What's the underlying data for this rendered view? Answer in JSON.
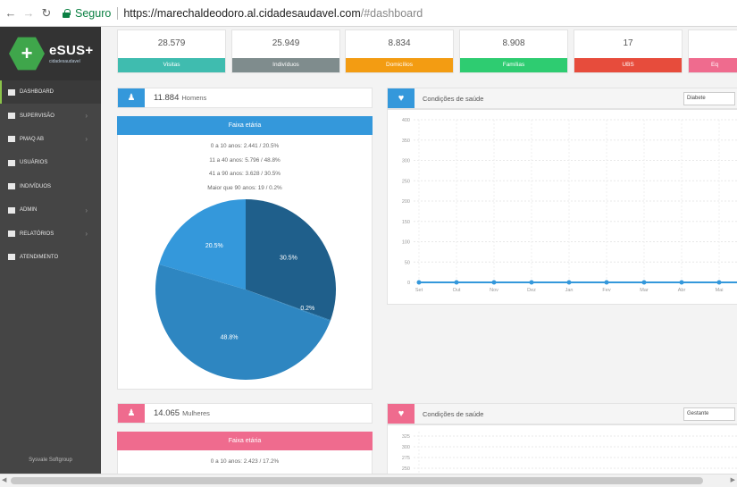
{
  "browser": {
    "secure_label": "Seguro",
    "url_host": "https://marechaldeodoro.al.cidadesaudavel.com",
    "url_path": "/#dashboard"
  },
  "brand": {
    "title": "eSUS+",
    "subtitle": "cidadesaudavel"
  },
  "sidebar": {
    "items": [
      {
        "label": "DASHBOARD",
        "icon": "grid-icon",
        "caret": false
      },
      {
        "label": "SUPERVISÃO",
        "icon": "clipboard-icon",
        "caret": true
      },
      {
        "label": "PMAQ AB",
        "icon": "folder-icon",
        "caret": true
      },
      {
        "label": "USUÁRIOS",
        "icon": "users-icon",
        "caret": false
      },
      {
        "label": "INDIVÍDUOS",
        "icon": "id-card-icon",
        "caret": false
      },
      {
        "label": "ADMIN",
        "icon": "wrench-icon",
        "caret": true
      },
      {
        "label": "RELATÓRIOS",
        "icon": "report-icon",
        "caret": true
      },
      {
        "label": "ATENDIMENTO",
        "icon": "thumbs-up-icon",
        "caret": false
      }
    ],
    "footer": "Sysvale Softgroup"
  },
  "stats": [
    {
      "value": "28.579",
      "label": "Visitas",
      "color": "#3fbcaf"
    },
    {
      "value": "25.949",
      "label": "Indivíduos",
      "color": "#7f8c8d"
    },
    {
      "value": "8.834",
      "label": "Domicílios",
      "color": "#f39c12"
    },
    {
      "value": "8.908",
      "label": "Famílias",
      "color": "#2ecc71"
    },
    {
      "value": "17",
      "label": "UBS",
      "color": "#e74c3c"
    },
    {
      "value": "",
      "label": "Eq",
      "color": "#ef6b8e"
    }
  ],
  "men": {
    "count": "11.884",
    "label": "Homens",
    "faixa": "Faixa etária",
    "color": "#3498db",
    "ranges": [
      "0 a 10 anos: 2.441 / 20.5%",
      "11 a 40 anos: 5.796 / 48.8%",
      "41 a 90 anos: 3.628 / 30.5%",
      "Maior que 90 anos: 19 / 0.2%"
    ]
  },
  "women": {
    "count": "14.065",
    "label": "Mulheres",
    "faixa": "Faixa etária",
    "color": "#ef6b8e",
    "ranges": [
      "0 a 10 anos: 2.423 / 17.2%"
    ]
  },
  "pie": {
    "slices": [
      {
        "label": "30.5%",
        "value": 30.5,
        "color": "#1f5f8b"
      },
      {
        "label": "0.2%",
        "value": 0.2,
        "color": "#2980b9"
      },
      {
        "label": "48.8%",
        "value": 48.8,
        "color": "#2e86c1"
      },
      {
        "label": "20.5%",
        "value": 20.5,
        "color": "#3498db"
      }
    ]
  },
  "conditions_1": {
    "title": "Condições de saúde",
    "select": "Diabete",
    "color": "#3498db",
    "y_ticks": [
      "400",
      "350",
      "300",
      "250",
      "200",
      "150",
      "100",
      "50",
      "0"
    ],
    "months": [
      "Set",
      "Out",
      "Nov",
      "Dez",
      "Jan",
      "Fev",
      "Mar",
      "Abr",
      "Mai"
    ],
    "values": [
      0,
      0,
      0,
      0,
      0,
      0,
      0,
      0,
      0
    ]
  },
  "conditions_2": {
    "title": "Condições de saúde",
    "select": "Gestante",
    "color": "#ef6b8e",
    "y_ticks": [
      "325",
      "300",
      "275",
      "250"
    ]
  }
}
